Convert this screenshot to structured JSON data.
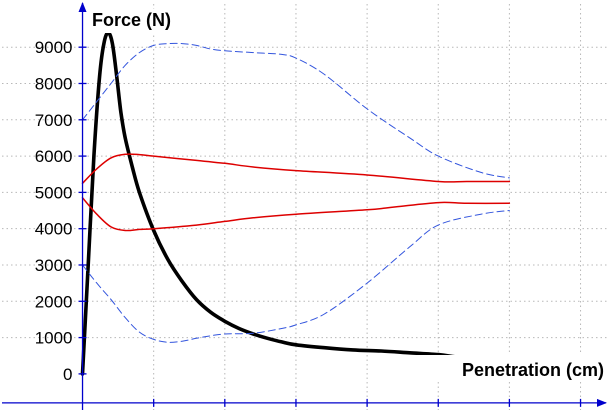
{
  "chart_data": {
    "type": "line",
    "xlabel": "Penetration (cm)",
    "ylabel": "Force (N)",
    "xlim": [
      -5.8,
      37
    ],
    "ylim": [
      -1050,
      10300
    ],
    "x_ticks": [
      5,
      10,
      15,
      20,
      25,
      30,
      35
    ],
    "y_ticks": [
      0,
      1000,
      2000,
      3000,
      4000,
      5000,
      6000,
      7000,
      8000,
      9000
    ],
    "grid": true,
    "grid_style": "dotted",
    "legend": "none",
    "series": [
      {
        "color": "#000000",
        "style": "solid-thick",
        "x": [
          0,
          0.4,
          0.8,
          1.2,
          1.5,
          1.8,
          2.1,
          2.4,
          2.7,
          3.0,
          3.5,
          4,
          5,
          6,
          7,
          8,
          9,
          10,
          11,
          12,
          13,
          14,
          15,
          17,
          19,
          21,
          23,
          25,
          26,
          27,
          28,
          29,
          30
        ],
        "y": [
          0,
          3000,
          6000,
          8200,
          9100,
          9400,
          9100,
          8200,
          7200,
          6500,
          5700,
          5000,
          3950,
          3150,
          2550,
          2050,
          1700,
          1450,
          1250,
          1100,
          980,
          880,
          800,
          720,
          660,
          630,
          580,
          530,
          480,
          420,
          370,
          360,
          370
        ]
      },
      {
        "color": "#dd0000",
        "style": "solid",
        "x": [
          0,
          1,
          2,
          3,
          4,
          5,
          8,
          10,
          12,
          15,
          20,
          25,
          27,
          30
        ],
        "y": [
          5250,
          5650,
          5950,
          6050,
          6040,
          6000,
          5880,
          5800,
          5700,
          5600,
          5480,
          5300,
          5300,
          5300
        ]
      },
      {
        "color": "#dd0000",
        "style": "solid",
        "x": [
          0,
          1,
          2,
          3,
          4,
          5,
          8,
          10,
          12,
          15,
          20,
          22,
          25,
          27,
          30
        ],
        "y": [
          4850,
          4400,
          4050,
          3950,
          3980,
          4000,
          4100,
          4200,
          4300,
          4400,
          4520,
          4600,
          4720,
          4700,
          4700
        ]
      },
      {
        "color": "#3355dd",
        "style": "dashed",
        "x": [
          0,
          1,
          2,
          3,
          4,
          5,
          6,
          7,
          8,
          9,
          10,
          12,
          14,
          15,
          17,
          20,
          23,
          25,
          28,
          30
        ],
        "y": [
          7000,
          7500,
          8000,
          8500,
          8850,
          9050,
          9100,
          9100,
          9050,
          8950,
          8900,
          8850,
          8800,
          8700,
          8250,
          7300,
          6500,
          6000,
          5550,
          5400
        ]
      },
      {
        "color": "#3355dd",
        "style": "dashed",
        "x": [
          0,
          1,
          2,
          3,
          4,
          5,
          6,
          7,
          8,
          9,
          10,
          12,
          14,
          15,
          17,
          20,
          23,
          25,
          28,
          30
        ],
        "y": [
          3000,
          2500,
          2050,
          1550,
          1150,
          950,
          870,
          900,
          980,
          1050,
          1100,
          1120,
          1250,
          1350,
          1650,
          2500,
          3500,
          4100,
          4400,
          4500
        ]
      }
    ]
  }
}
